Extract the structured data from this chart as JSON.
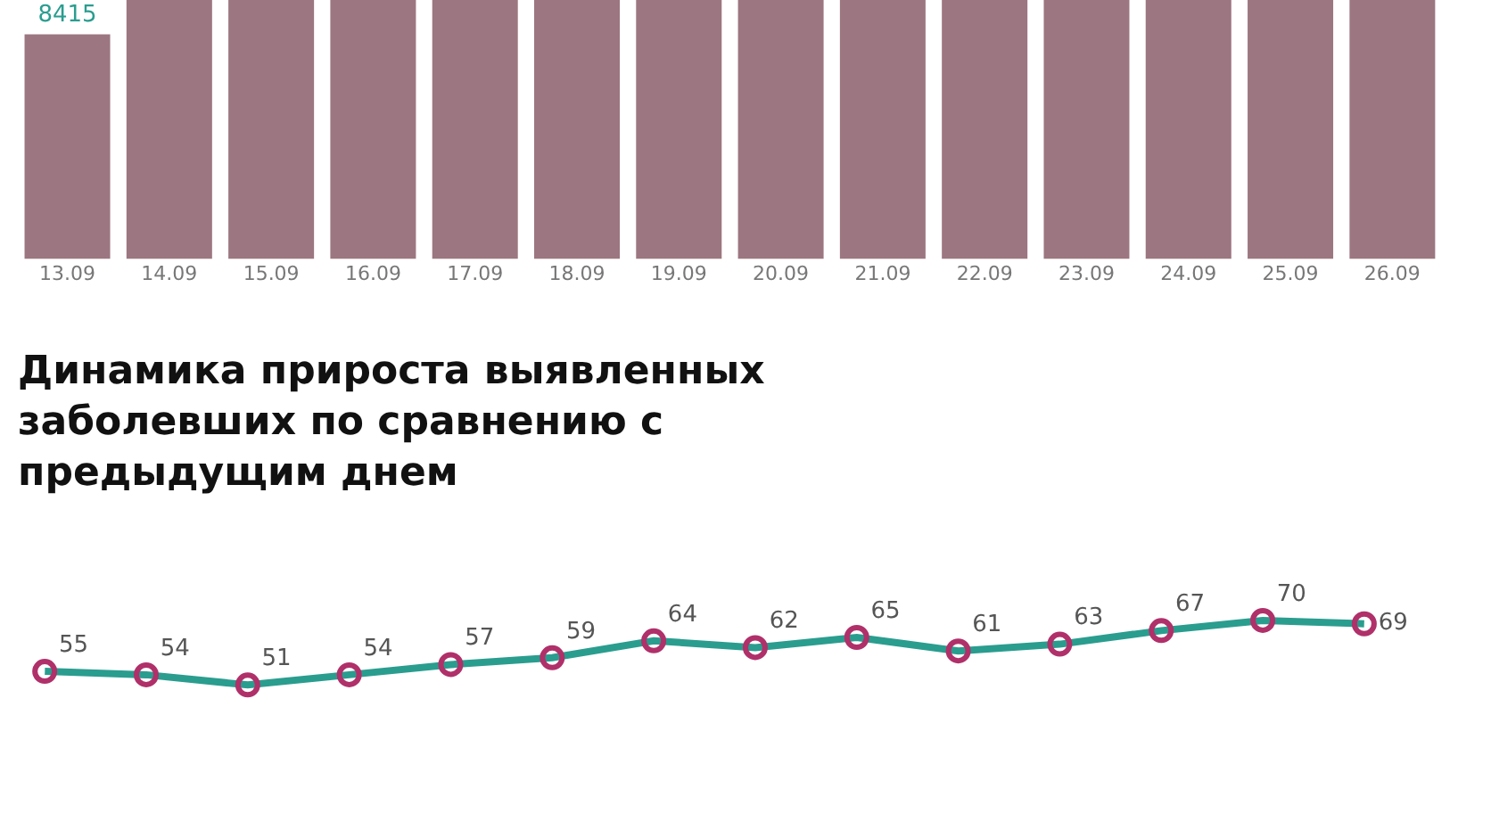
{
  "chart_data": [
    {
      "type": "bar",
      "categories": [
        "13.09",
        "14.09",
        "15.09",
        "16.09",
        "17.09",
        "18.09",
        "19.09",
        "20.09",
        "21.09",
        "22.09",
        "23.09",
        "24.09",
        "25.09",
        "26.09"
      ],
      "values": [
        8415,
        9700,
        9700,
        9700,
        9700,
        9700,
        9700,
        9700,
        9700,
        9700,
        9700,
        9700,
        9700,
        9700
      ],
      "value_labels": [
        "8415",
        null,
        null,
        null,
        null,
        null,
        null,
        null,
        null,
        null,
        null,
        null,
        null,
        null
      ],
      "color": "#9c7680",
      "ylim": [
        0,
        9700
      ],
      "tick_labels": "x"
    },
    {
      "type": "line",
      "title": "Динамика прироста выявленных\nзаболевших по сравнению с\nпредыдущим днем",
      "categories": [
        null,
        null,
        null,
        null,
        null,
        null,
        null,
        null,
        null,
        null,
        null,
        null,
        null,
        null
      ],
      "series": [
        {
          "color": "#2a9d8f",
          "values": [
            55,
            54,
            51,
            54,
            57,
            59,
            64,
            62,
            65,
            61,
            63,
            67,
            70,
            69
          ]
        }
      ],
      "data_labels": true,
      "marker": "circle",
      "line_style": "solid",
      "tick_labels": false
    }
  ]
}
